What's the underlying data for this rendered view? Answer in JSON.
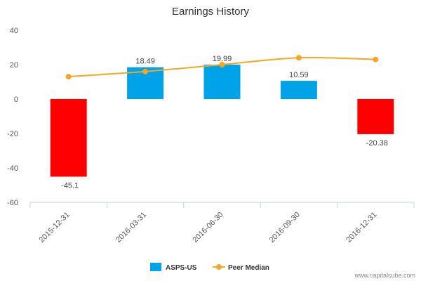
{
  "chart_data": {
    "type": "bar",
    "title": "Earnings History",
    "categories": [
      "2015-12-31",
      "2016-03-31",
      "2016-06-30",
      "2016-09-30",
      "2016-12-31"
    ],
    "series": [
      {
        "name": "ASPS-US",
        "type": "bar",
        "values": [
          -45.1,
          18.49,
          19.99,
          10.59,
          -20.38
        ],
        "labels": [
          "-45.1",
          "18.49",
          "19.99",
          "10.59",
          "-20.38"
        ],
        "positive_color": "#00A2E8",
        "negative_color": "#FF0000"
      },
      {
        "name": "Peer Median",
        "type": "line",
        "values": [
          13,
          16,
          20,
          24,
          23
        ],
        "color": "#F5A623"
      }
    ],
    "ylim": [
      -60,
      40
    ],
    "yticks": [
      "40",
      "20",
      "0",
      "-20",
      "-40",
      "-60"
    ],
    "ytick_values": [
      40,
      20,
      0,
      -20,
      -40,
      -60
    ],
    "grid": false,
    "legend_position": "bottom-center"
  },
  "credit": "www.capitalcube.com"
}
